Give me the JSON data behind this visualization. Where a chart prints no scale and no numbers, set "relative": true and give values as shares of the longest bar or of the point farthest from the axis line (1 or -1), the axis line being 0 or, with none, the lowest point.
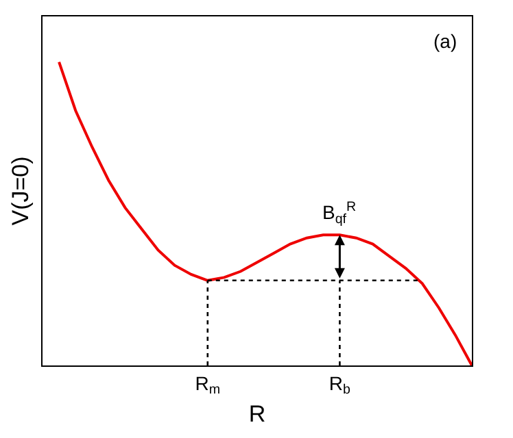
{
  "chart_data": {
    "type": "line",
    "relative": true,
    "xlabel": "R",
    "ylabel": "V(J=0)",
    "categories": [
      null,
      null,
      null,
      null,
      null,
      null,
      null,
      null,
      null,
      null,
      "R$_{m}$",
      null,
      null,
      null,
      null,
      null,
      null,
      null,
      "R$_{b}$",
      null,
      null,
      null,
      null,
      null,
      null,
      null,
      null
    ],
    "series": [
      {
        "color": "#ee0000",
        "values": [
          null,
          1,
          0.84,
          0.72,
          0.61,
          0.52,
          0.45,
          0.38,
          0.33,
          0.3,
          0.28,
          0.29,
          0.31,
          0.34,
          0.37,
          0.4,
          0.42,
          0.43,
          0.43,
          0.42,
          0.4,
          0.36,
          0.32,
          0.27,
          0.19,
          0.1,
          0
        ]
      }
    ],
    "ref_lines": [
      {
        "axis": "y",
        "value": 0.28,
        "line_style": "dotted",
        "color": "#000000"
      },
      {
        "axis": "x",
        "value": "R$_{m}$",
        "line_style": "dotted",
        "color": "#000000"
      },
      {
        "axis": "x",
        "value": "R$_{b}$",
        "line_style": "dotted",
        "color": "#000000"
      }
    ],
    "annotations": [
      {
        "text": "B$_{qf}$$^{R}$",
        "x": "R$_{b}$",
        "y": 0.43
      },
      "(a)"
    ],
    "grid": false,
    "marker": "none",
    "line_style": "solid"
  }
}
